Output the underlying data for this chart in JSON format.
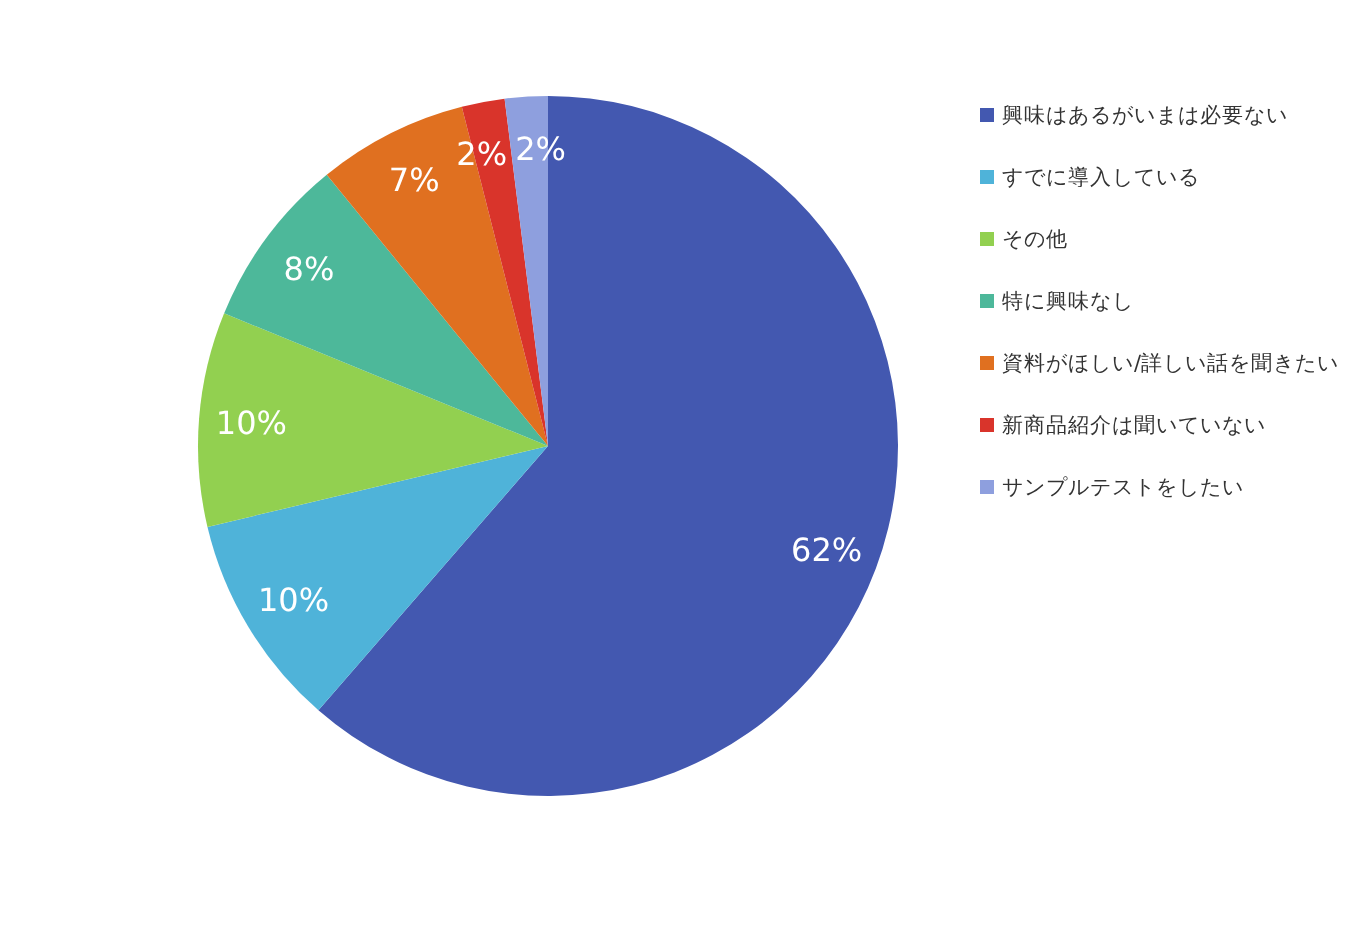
{
  "chart_data": {
    "type": "pie",
    "categories": [
      "興味はあるがいまは必要ない",
      "すでに導入している",
      "その他",
      "特に興味なし",
      "資料がほしい/詳しい話を聞きたい",
      "新商品紹介は聞いていない",
      "サンプルテストをしたい"
    ],
    "values": [
      62,
      10,
      10,
      8,
      7,
      2,
      2
    ],
    "colors": [
      "#4358b0",
      "#4fb3d9",
      "#92d050",
      "#4db89a",
      "#e07020",
      "#d9342b",
      "#8e9fde"
    ],
    "value_labels": [
      "62%",
      "10%",
      "10%",
      "8%",
      "7%",
      "2%",
      "2%"
    ],
    "legend": "right"
  }
}
